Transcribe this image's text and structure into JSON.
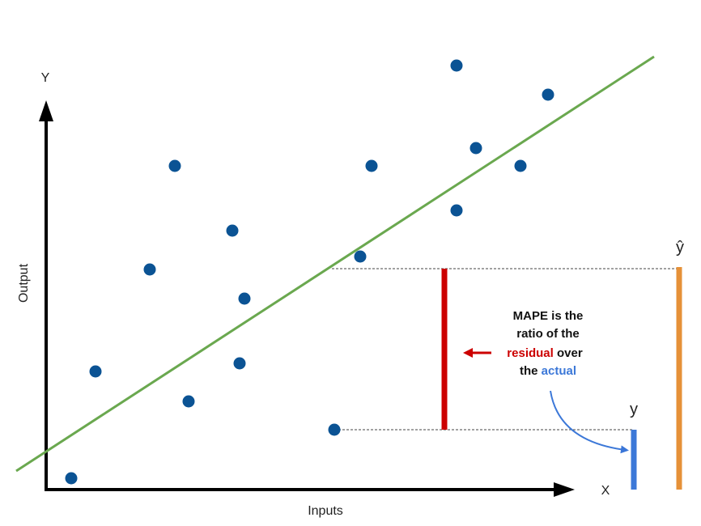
{
  "axes": {
    "y_label": "Y",
    "x_label": "X",
    "y_title": "Output",
    "x_title": "Inputs"
  },
  "markers": {
    "predicted": "ŷ",
    "actual": "y"
  },
  "annotation": {
    "line1": "MAPE is the",
    "line2": "ratio of the",
    "residual": "residual",
    "over": "over",
    "the": "the",
    "actual": "actual"
  }
}
